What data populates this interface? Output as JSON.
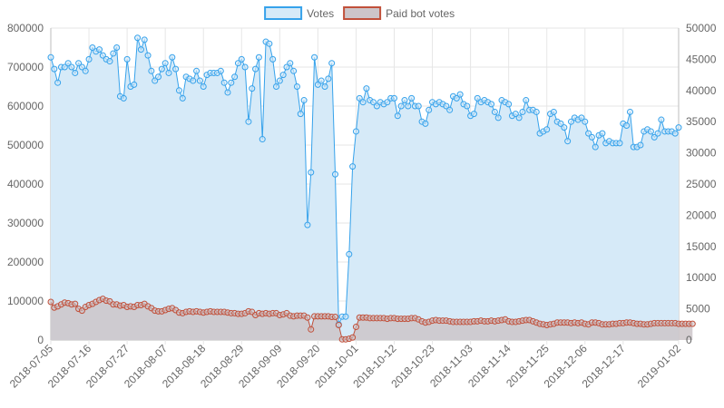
{
  "chart_data": {
    "type": "line",
    "x_tick_labels": [
      "2018-07-05",
      "2018-07-16",
      "2018-07-27",
      "2018-08-07",
      "2018-08-18",
      "2018-08-29",
      "2018-09-09",
      "2018-09-20",
      "2018-10-01",
      "2018-10-12",
      "2018-10-23",
      "2018-11-03",
      "2018-11-14",
      "2018-11-25",
      "2018-12-06",
      "2018-12-17",
      "2019-01-02"
    ],
    "x_range": [
      "2018-07-05",
      "2019-01-02"
    ],
    "y_left": {
      "ticks": [
        "0",
        "100000",
        "200000",
        "300000",
        "400000",
        "500000",
        "600000",
        "700000",
        "800000"
      ],
      "min": 0,
      "max": 800000
    },
    "y_right": {
      "ticks": [
        "0",
        "5000",
        "10000",
        "15000",
        "20000",
        "25000",
        "30000",
        "35000",
        "40000",
        "45000",
        "50000"
      ],
      "min": 0,
      "max": 50000
    },
    "grid": true,
    "legend_position": "top",
    "series": [
      {
        "name": "Votes",
        "axis": "left",
        "color": "#36a2eb",
        "fill": "#d6eaf8",
        "x_start": "2018-07-05",
        "values": [
          725000,
          695000,
          660000,
          700000,
          700000,
          710000,
          700000,
          685000,
          710000,
          700000,
          690000,
          720000,
          750000,
          740000,
          745000,
          730000,
          720000,
          715000,
          735000,
          750000,
          625000,
          620000,
          720000,
          650000,
          655000,
          775000,
          745000,
          770000,
          730000,
          690000,
          665000,
          675000,
          695000,
          710000,
          685000,
          725000,
          695000,
          640000,
          620000,
          675000,
          670000,
          665000,
          690000,
          665000,
          650000,
          680000,
          685000,
          685000,
          685000,
          690000,
          660000,
          635000,
          660000,
          675000,
          710000,
          720000,
          700000,
          560000,
          645000,
          695000,
          725000,
          515000,
          765000,
          760000,
          720000,
          650000,
          665000,
          680000,
          700000,
          710000,
          690000,
          650000,
          580000,
          615000,
          295000,
          430000,
          725000,
          655000,
          665000,
          650000,
          670000,
          710000,
          425000,
          40000,
          60000,
          60000,
          220000,
          445000,
          535000,
          620000,
          610000,
          645000,
          615000,
          610000,
          600000,
          610000,
          605000,
          610000,
          620000,
          620000,
          575000,
          600000,
          615000,
          600000,
          620000,
          600000,
          600000,
          560000,
          555000,
          590000,
          610000,
          605000,
          610000,
          605000,
          600000,
          590000,
          625000,
          620000,
          630000,
          605000,
          600000,
          575000,
          580000,
          620000,
          610000,
          615000,
          610000,
          605000,
          585000,
          570000,
          615000,
          610000,
          605000,
          575000,
          580000,
          570000,
          585000,
          615000,
          590000,
          590000,
          585000,
          530000,
          535000,
          540000,
          580000,
          585000,
          560000,
          555000,
          545000,
          510000,
          560000,
          570000,
          565000,
          570000,
          560000,
          530000,
          520000,
          495000,
          525000,
          530000,
          505000,
          510000,
          505000,
          505000,
          505000,
          555000,
          550000,
          585000,
          495000,
          495000,
          500000,
          535000,
          540000,
          535000,
          520000,
          530000,
          565000,
          535000,
          535000,
          535000,
          530000,
          545000
        ]
      },
      {
        "name": "Paid bot votes",
        "axis": "right",
        "color": "#c1503a",
        "fill": "#cdc5c9",
        "x_start": "2018-07-05",
        "values": [
          6100,
          5200,
          5400,
          5700,
          6000,
          5900,
          5700,
          5800,
          5000,
          4700,
          5300,
          5600,
          5800,
          6100,
          6400,
          6600,
          6300,
          6200,
          5700,
          5700,
          5500,
          5600,
          5300,
          5400,
          5300,
          5600,
          5600,
          5800,
          5400,
          5100,
          4700,
          4600,
          4600,
          4800,
          5000,
          5100,
          4800,
          4400,
          4300,
          4500,
          4600,
          4500,
          4600,
          4500,
          4400,
          4500,
          4600,
          4500,
          4500,
          4500,
          4500,
          4400,
          4300,
          4300,
          4200,
          4200,
          4300,
          4600,
          4500,
          4000,
          4300,
          4200,
          4300,
          4200,
          4300,
          4300,
          4000,
          4100,
          4300,
          3900,
          3800,
          3900,
          3900,
          3900,
          3600,
          1700,
          3800,
          3800,
          3800,
          3800,
          3800,
          3700,
          3700,
          2400,
          100,
          100,
          200,
          400,
          2100,
          3600,
          3600,
          3600,
          3500,
          3500,
          3500,
          3500,
          3500,
          3400,
          3500,
          3500,
          3400,
          3400,
          3400,
          3400,
          3500,
          3500,
          3300,
          3000,
          2800,
          2900,
          3100,
          3200,
          3100,
          3100,
          3100,
          3000,
          2900,
          2900,
          2900,
          2900,
          2900,
          2900,
          3000,
          3000,
          3100,
          3000,
          3000,
          3100,
          3000,
          3100,
          3200,
          3300,
          3000,
          2900,
          2900,
          3000,
          3100,
          3200,
          3200,
          3000,
          2800,
          2600,
          2500,
          2400,
          2500,
          2600,
          2800,
          2800,
          2800,
          2800,
          2700,
          2800,
          2700,
          2800,
          2600,
          2500,
          2800,
          2800,
          2700,
          2500,
          2500,
          2500,
          2600,
          2600,
          2700,
          2700,
          2800,
          2800,
          2700,
          2600,
          2600,
          2500,
          2500,
          2600,
          2700,
          2700,
          2700,
          2700,
          2700,
          2700,
          2700,
          2600,
          2600,
          2600,
          2600,
          2600
        ]
      }
    ]
  }
}
